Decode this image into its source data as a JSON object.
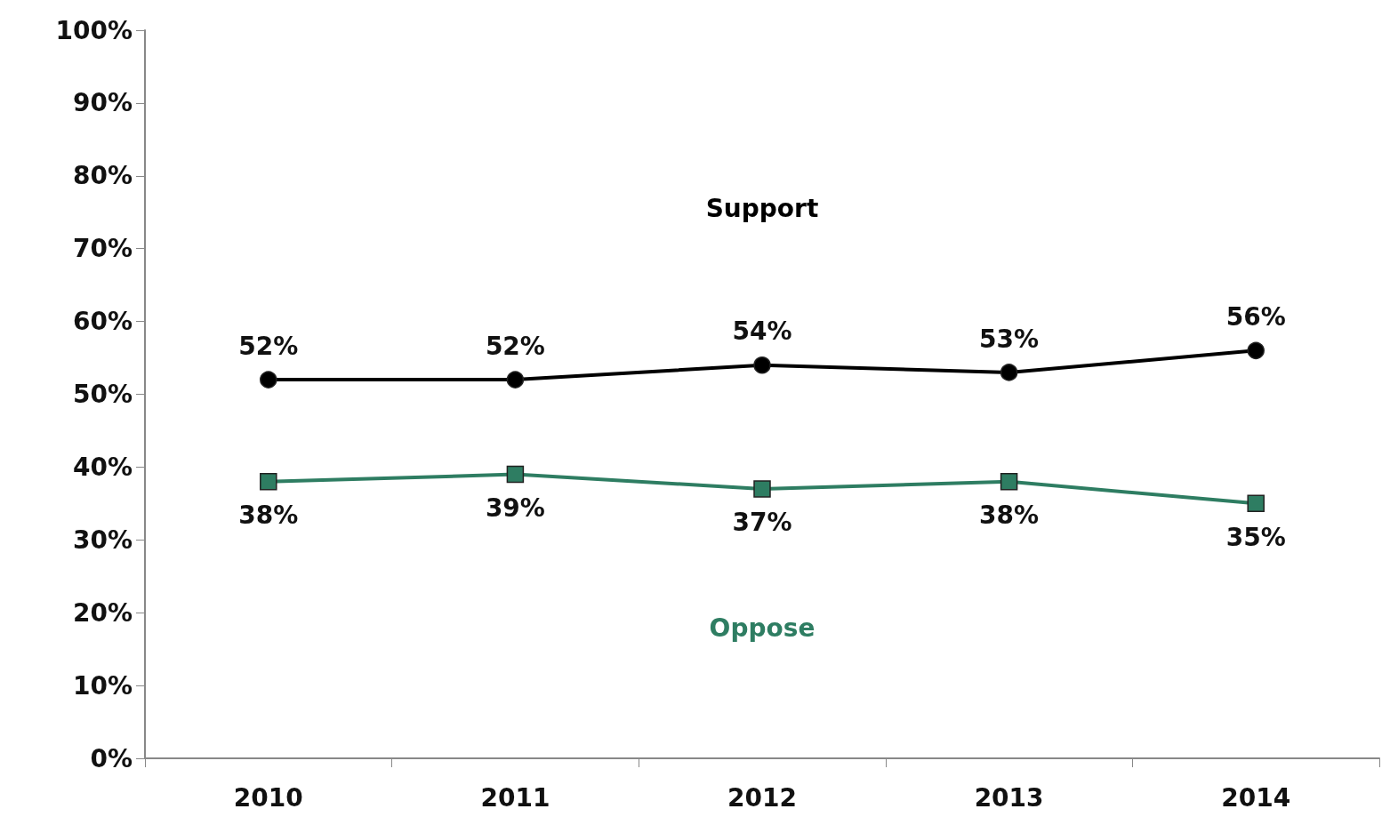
{
  "chart_data": {
    "type": "line",
    "categories": [
      "2010",
      "2011",
      "2012",
      "2013",
      "2014"
    ],
    "series": [
      {
        "name": "Support",
        "color": "#000000",
        "marker": "circle",
        "values": [
          52,
          52,
          54,
          53,
          56
        ],
        "value_labels": [
          "52%",
          "52%",
          "54%",
          "53%",
          "56%"
        ]
      },
      {
        "name": "Oppose",
        "color": "#2e7d62",
        "marker": "square",
        "values": [
          38,
          39,
          37,
          38,
          35
        ],
        "value_labels": [
          "38%",
          "39%",
          "37%",
          "38%",
          "35%"
        ]
      }
    ],
    "ylim": [
      0,
      100
    ],
    "yticks": [
      {
        "value": 0,
        "label": "0%"
      },
      {
        "value": 10,
        "label": "10%"
      },
      {
        "value": 20,
        "label": "20%"
      },
      {
        "value": 30,
        "label": "30%"
      },
      {
        "value": 40,
        "label": "40%"
      },
      {
        "value": 50,
        "label": "50%"
      },
      {
        "value": 60,
        "label": "60%"
      },
      {
        "value": 70,
        "label": "70%"
      },
      {
        "value": 80,
        "label": "80%"
      },
      {
        "value": 90,
        "label": "90%"
      },
      {
        "value": 100,
        "label": "100%"
      }
    ],
    "line_style": "solid"
  }
}
